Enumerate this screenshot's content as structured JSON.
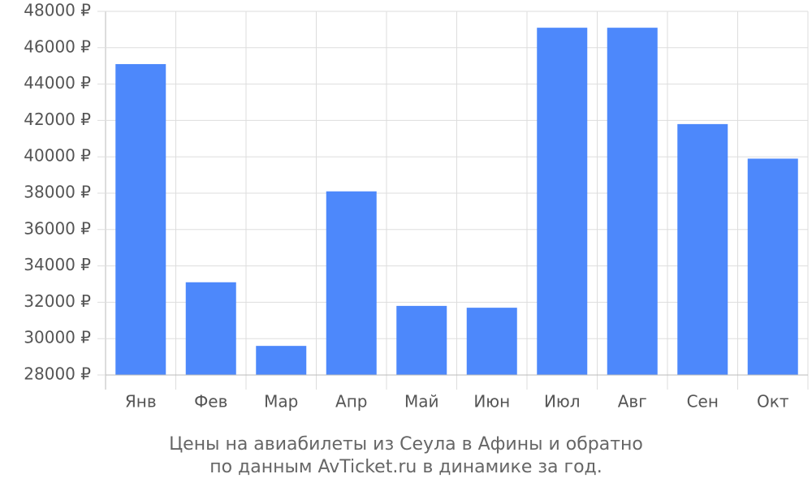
{
  "chart_data": {
    "type": "bar",
    "title": [
      "Цены на авиабилеты из Сеула в Афины и обратно",
      "по данным AvTicket.ru в динамике за год."
    ],
    "categories": [
      "Янв",
      "Фев",
      "Мар",
      "Апр",
      "Май",
      "Июн",
      "Июл",
      "Авг",
      "Сен",
      "Окт"
    ],
    "values": [
      45100,
      33100,
      29600,
      38100,
      31800,
      31700,
      47100,
      47100,
      41800,
      39900
    ],
    "color": "#4d88fb",
    "ylim": [
      28000,
      48000
    ],
    "yticks": [
      {
        "value": 28000,
        "label": "28000 ₽"
      },
      {
        "value": 30000,
        "label": "30000 ₽"
      },
      {
        "value": 32000,
        "label": "32000 ₽"
      },
      {
        "value": 34000,
        "label": "34000 ₽"
      },
      {
        "value": 36000,
        "label": "36000 ₽"
      },
      {
        "value": 38000,
        "label": "38000 ₽"
      },
      {
        "value": 40000,
        "label": "40000 ₽"
      },
      {
        "value": 42000,
        "label": "42000 ₽"
      },
      {
        "value": 44000,
        "label": "44000 ₽"
      },
      {
        "value": 46000,
        "label": "46000 ₽"
      },
      {
        "value": 48000,
        "label": "48000 ₽"
      }
    ],
    "grid": true
  }
}
